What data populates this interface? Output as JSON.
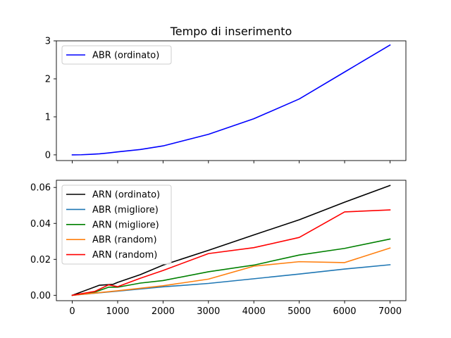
{
  "chart_data": [
    {
      "type": "line",
      "title": "Tempo di inserimento",
      "xlabel": "",
      "ylabel": "",
      "xlim": [
        -350,
        7350
      ],
      "ylim": [
        -0.15,
        3.0
      ],
      "xticks": [
        0,
        1000,
        2000,
        3000,
        4000,
        5000,
        6000,
        7000
      ],
      "xtick_labels_shown": false,
      "yticks": [
        0,
        1,
        2,
        3
      ],
      "ytick_labels": [
        "0",
        "1",
        "2",
        "3"
      ],
      "grid": false,
      "legend": "top-left",
      "series": [
        {
          "name": "ABR (ordinato)",
          "color": "#0000ff",
          "x": [
            0,
            200,
            400,
            600,
            800,
            1000,
            1500,
            2000,
            3000,
            4000,
            5000,
            6000,
            7000
          ],
          "y": [
            0,
            0.003,
            0.013,
            0.027,
            0.05,
            0.078,
            0.14,
            0.235,
            0.54,
            0.95,
            1.47,
            2.18,
            2.89
          ]
        }
      ]
    },
    {
      "type": "line",
      "title": "",
      "xlabel": "",
      "ylabel": "",
      "xlim": [
        -350,
        7350
      ],
      "ylim": [
        -0.003,
        0.064
      ],
      "xticks": [
        0,
        1000,
        2000,
        3000,
        4000,
        5000,
        6000,
        7000
      ],
      "xtick_labels": [
        "0",
        "1000",
        "2000",
        "3000",
        "4000",
        "5000",
        "6000",
        "7000"
      ],
      "yticks": [
        0,
        0.02,
        0.04,
        0.06
      ],
      "ytick_labels": [
        "0.00",
        "0.02",
        "0.04",
        "0.06"
      ],
      "grid": false,
      "legend": "top-left",
      "series": [
        {
          "name": "ARN (ordinato)",
          "color": "#000000",
          "x": [
            0,
            600,
            900,
            1000,
            1500,
            2000,
            3000,
            4000,
            5000,
            6000,
            7000
          ],
          "y": [
            0,
            0.0056,
            0.0061,
            0.0072,
            0.0115,
            0.0168,
            0.025,
            0.0336,
            0.042,
            0.0518,
            0.0611
          ]
        },
        {
          "name": "ABR (migliore)",
          "color": "#1f77b4",
          "x": [
            0,
            1000,
            2000,
            3000,
            4000,
            5000,
            6000,
            7000
          ],
          "y": [
            0,
            0.0023,
            0.0047,
            0.0066,
            0.0092,
            0.0118,
            0.0146,
            0.017
          ]
        },
        {
          "name": "ARN (migliore)",
          "color": "#008000",
          "x": [
            0,
            500,
            800,
            1000,
            1500,
            2000,
            3000,
            4000,
            5000,
            6000,
            7000
          ],
          "y": [
            0,
            0.0018,
            0.0045,
            0.0045,
            0.0068,
            0.0082,
            0.0131,
            0.0168,
            0.0224,
            0.0261,
            0.0313
          ]
        },
        {
          "name": "ABR (random)",
          "color": "#ff7f0e",
          "x": [
            0,
            1000,
            2000,
            3000,
            4000,
            5000,
            6000,
            7000
          ],
          "y": [
            0,
            0.0025,
            0.0053,
            0.009,
            0.0162,
            0.0187,
            0.0182,
            0.0263
          ]
        },
        {
          "name": "ARN (random)",
          "color": "#ff0000",
          "x": [
            0,
            500,
            800,
            1000,
            1500,
            2000,
            3000,
            4000,
            5000,
            6000,
            7000
          ],
          "y": [
            0,
            0.0022,
            0.0058,
            0.0048,
            0.0095,
            0.0138,
            0.0232,
            0.0265,
            0.0322,
            0.0464,
            0.0475
          ]
        }
      ]
    }
  ]
}
